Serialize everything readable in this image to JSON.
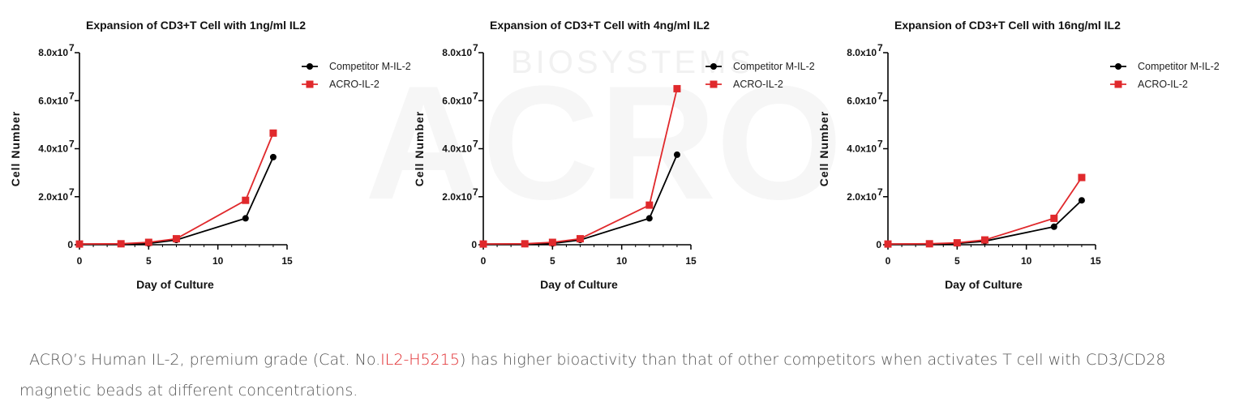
{
  "watermark": {
    "text_large": "ACRO",
    "text_small": "BIOSYSTEMS"
  },
  "chart_data": [
    {
      "type": "line",
      "title": "Expansion of CD3+T Cell with 1ng/ml IL2",
      "xlabel": "Day of Culture",
      "ylabel": "Cell Number",
      "xlim": [
        0,
        15
      ],
      "ylim": [
        0,
        80000000
      ],
      "x_ticks": [
        0,
        5,
        10,
        15
      ],
      "x_tick_labels": [
        "0",
        "5",
        "10",
        "15"
      ],
      "y_ticks": [
        0,
        20000000,
        40000000,
        60000000,
        80000000
      ],
      "y_tick_labels": [
        "0",
        "2.0x10",
        "4.0x10",
        "6.0x10",
        "8.0x10"
      ],
      "y_tick_exp": [
        "",
        "7",
        "7",
        "7",
        "7"
      ],
      "legend_position": "top-right",
      "series": [
        {
          "name": "Competitor M-IL-2",
          "color": "#000000",
          "marker": "circle",
          "x": [
            0,
            3,
            5,
            7,
            12,
            14
          ],
          "y": [
            300000,
            300000,
            500000,
            2000000,
            11000000,
            36500000
          ]
        },
        {
          "name": "ACRO-IL-2",
          "color": "#e0292c",
          "marker": "square",
          "x": [
            0,
            3,
            5,
            7,
            12,
            14
          ],
          "y": [
            300000,
            400000,
            1000000,
            2500000,
            18500000,
            46500000
          ]
        }
      ]
    },
    {
      "type": "line",
      "title": "Expansion of CD3+T Cell with 4ng/ml IL2",
      "xlabel": "Day of Culture",
      "ylabel": "Cell Number",
      "xlim": [
        0,
        15
      ],
      "ylim": [
        0,
        80000000
      ],
      "x_ticks": [
        0,
        5,
        10,
        15
      ],
      "x_tick_labels": [
        "0",
        "5",
        "10",
        "15"
      ],
      "y_ticks": [
        0,
        20000000,
        40000000,
        60000000,
        80000000
      ],
      "y_tick_labels": [
        "0",
        "2.0x10",
        "4.0x10",
        "6.0x10",
        "8.0x10"
      ],
      "y_tick_exp": [
        "",
        "7",
        "7",
        "7",
        "7"
      ],
      "legend_position": "top-right",
      "series": [
        {
          "name": "Competitor M-IL-2",
          "color": "#000000",
          "marker": "circle",
          "x": [
            0,
            3,
            5,
            7,
            12,
            14
          ],
          "y": [
            300000,
            300000,
            500000,
            2000000,
            11000000,
            37500000
          ]
        },
        {
          "name": "ACRO-IL-2",
          "color": "#e0292c",
          "marker": "square",
          "x": [
            0,
            3,
            5,
            7,
            12,
            14
          ],
          "y": [
            300000,
            400000,
            1000000,
            2500000,
            16500000,
            65000000
          ]
        }
      ]
    },
    {
      "type": "line",
      "title": "Expansion of CD3+T Cell with 16ng/ml IL2",
      "xlabel": "Day of Culture",
      "ylabel": "Cell Number",
      "xlim": [
        0,
        15
      ],
      "ylim": [
        0,
        80000000
      ],
      "x_ticks": [
        0,
        5,
        10,
        15
      ],
      "x_tick_labels": [
        "0",
        "5",
        "10",
        "15"
      ],
      "y_ticks": [
        0,
        20000000,
        40000000,
        60000000,
        80000000
      ],
      "y_tick_labels": [
        "0",
        "2.0x10",
        "4.0x10",
        "6.0x10",
        "8.0x10"
      ],
      "y_tick_exp": [
        "",
        "7",
        "7",
        "7",
        "7"
      ],
      "legend_position": "top-right",
      "series": [
        {
          "name": "Competitor M-IL-2",
          "color": "#000000",
          "marker": "circle",
          "x": [
            0,
            3,
            5,
            7,
            12,
            14
          ],
          "y": [
            300000,
            300000,
            500000,
            1500000,
            7500000,
            18500000
          ]
        },
        {
          "name": "ACRO-IL-2",
          "color": "#e0292c",
          "marker": "square",
          "x": [
            0,
            3,
            5,
            7,
            12,
            14
          ],
          "y": [
            300000,
            400000,
            800000,
            2000000,
            11000000,
            28000000
          ]
        }
      ]
    }
  ],
  "caption": {
    "pre": "ACRO’s Human IL-2, premium grade (Cat. No.",
    "cat_link": "IL2-H5215",
    "post": ") has higher bioactivity than that of other competitors when activates T cell with CD3/CD28 magnetic beads at different concentrations."
  }
}
